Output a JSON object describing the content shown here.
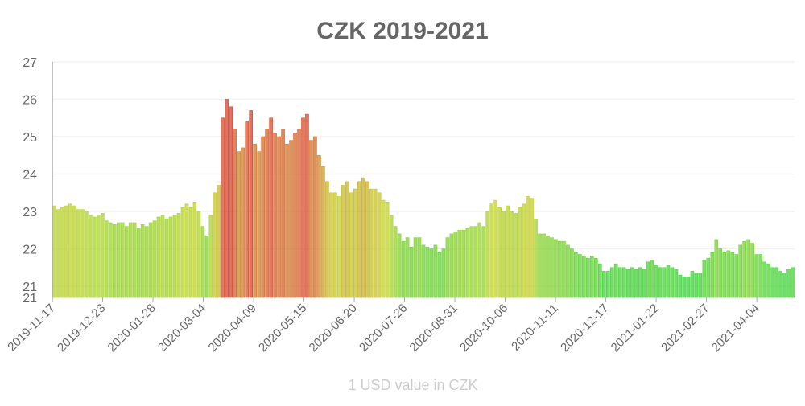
{
  "chart_data": {
    "type": "bar",
    "title": "CZK 2019-2021",
    "xlabel": "1 USD value in CZK",
    "ylabel": "",
    "ylim": [
      20.7,
      27
    ],
    "y_ticks": [
      "27",
      "26",
      "25",
      "24",
      "23",
      "22",
      "21",
      "21"
    ],
    "y_tick_values": [
      27,
      26,
      25,
      24,
      23,
      22,
      21,
      20.7
    ],
    "x_ticks": [
      "2019-11-17",
      "2019-12-23",
      "2020-01-28",
      "2020-03-04",
      "2020-04-09",
      "2020-05-15",
      "2020-06-20",
      "2020-07-26",
      "2020-08-31",
      "2020-10-06",
      "2020-11-11",
      "2020-12-17",
      "2021-01-22",
      "2021-02-27",
      "2021-04-04"
    ],
    "x_range": [
      "2019-11-17",
      "2021-05-01"
    ],
    "grid": true,
    "legend": "none",
    "colors": {
      "low": "#3ad13a",
      "mid": "#c4d22a",
      "high": "#d9412b"
    },
    "values": [
      23.15,
      23.05,
      23.1,
      23.15,
      23.2,
      23.15,
      23.05,
      23.05,
      23.0,
      22.9,
      22.85,
      22.9,
      22.95,
      22.75,
      22.7,
      22.65,
      22.7,
      22.7,
      22.6,
      22.7,
      22.7,
      22.55,
      22.65,
      22.6,
      22.7,
      22.75,
      22.85,
      22.9,
      22.8,
      22.85,
      22.9,
      22.95,
      23.1,
      23.2,
      23.1,
      23.25,
      23.0,
      22.6,
      22.35,
      22.9,
      23.5,
      23.7,
      25.5,
      26.0,
      25.8,
      25.2,
      24.6,
      24.7,
      25.4,
      25.7,
      24.8,
      24.6,
      25.0,
      25.2,
      25.5,
      25.1,
      25.0,
      25.2,
      24.8,
      24.9,
      25.1,
      25.2,
      25.5,
      25.6,
      24.9,
      25.0,
      24.5,
      24.2,
      23.8,
      23.5,
      23.5,
      23.4,
      23.7,
      23.8,
      23.5,
      23.6,
      23.8,
      23.9,
      23.8,
      23.6,
      23.6,
      23.5,
      23.3,
      23.25,
      22.9,
      22.6,
      22.4,
      22.2,
      22.3,
      22.05,
      22.3,
      22.3,
      22.1,
      22.05,
      22.0,
      22.1,
      21.9,
      22.0,
      22.3,
      22.4,
      22.45,
      22.5,
      22.5,
      22.55,
      22.6,
      22.6,
      22.7,
      22.6,
      23.0,
      23.2,
      23.3,
      23.1,
      23.0,
      23.15,
      23.0,
      22.95,
      23.1,
      23.2,
      23.4,
      23.35,
      22.8,
      22.4,
      22.4,
      22.35,
      22.3,
      22.25,
      22.2,
      22.2,
      22.1,
      22.0,
      21.9,
      21.85,
      21.8,
      21.75,
      21.8,
      21.75,
      21.6,
      21.4,
      21.4,
      21.5,
      21.6,
      21.5,
      21.5,
      21.45,
      21.5,
      21.45,
      21.5,
      21.45,
      21.65,
      21.7,
      21.55,
      21.5,
      21.5,
      21.55,
      21.5,
      21.45,
      21.3,
      21.25,
      21.25,
      21.4,
      21.35,
      21.35,
      21.7,
      21.75,
      21.9,
      22.25,
      22.0,
      21.9,
      21.95,
      21.9,
      21.85,
      22.1,
      22.2,
      22.25,
      22.15,
      21.85,
      21.85,
      21.65,
      21.6,
      21.5,
      21.5,
      21.4,
      21.35,
      21.45,
      21.5
    ]
  }
}
